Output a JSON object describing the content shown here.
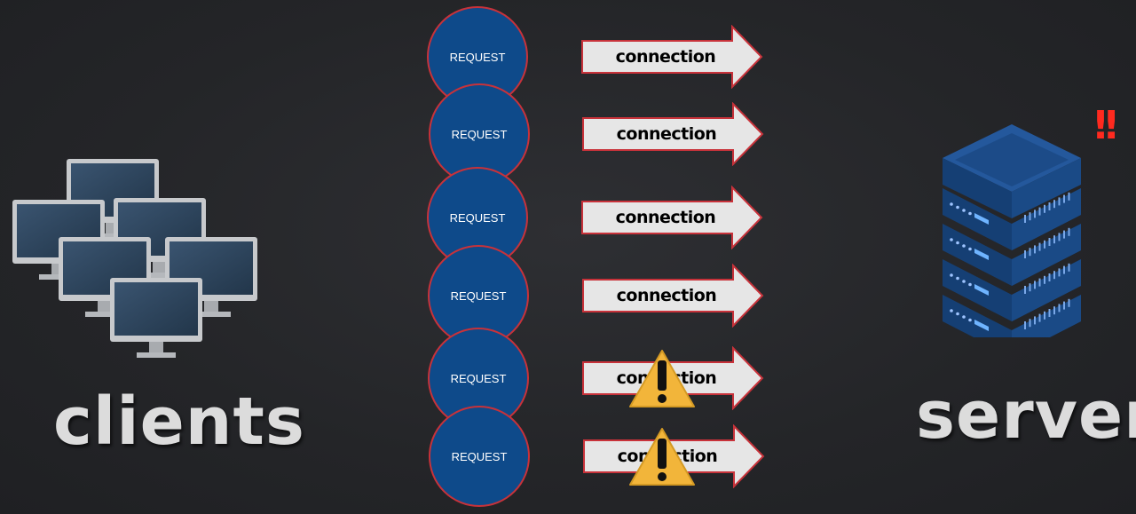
{
  "diagram": {
    "clients_label": "clients",
    "server_label": "server",
    "server_alert": "!!",
    "requests": [
      {
        "label": "REQUEST",
        "connection": "connection",
        "warning": false
      },
      {
        "label": "REQUEST",
        "connection": "connection",
        "warning": false
      },
      {
        "label": "REQUEST",
        "connection": "connection",
        "warning": false
      },
      {
        "label": "REQUEST",
        "connection": "connection",
        "warning": false
      },
      {
        "label": "REQUEST",
        "connection": "connection",
        "warning": true
      },
      {
        "label": "REQUEST",
        "connection": "connection",
        "warning": true
      }
    ]
  },
  "colors": {
    "background": "#242528",
    "request_fill": "#0e4a8a",
    "request_border": "#c8323a",
    "arrow_fill": "#e6e6e6",
    "arrow_border": "#c8323a",
    "warning": "#f2b53a",
    "alert": "#ff2a1f",
    "server": "#1d4f8f"
  },
  "icons": [
    "monitor-icon",
    "server-rack-icon",
    "warning-triangle-icon",
    "double-exclamation-icon"
  ]
}
